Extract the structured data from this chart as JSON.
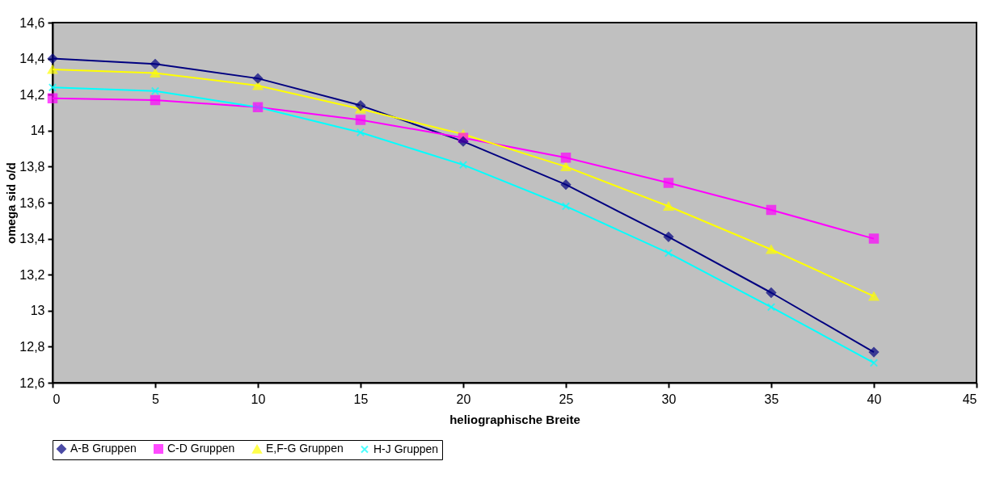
{
  "chart_data": {
    "type": "line",
    "xlabel": "heliographische Breite",
    "ylabel": "omega sid o/d",
    "x": [
      0,
      5,
      10,
      15,
      20,
      25,
      30,
      35,
      40
    ],
    "series": [
      {
        "name": "A-B Gruppen",
        "color": "#000080",
        "marker": "diamond",
        "values": [
          14.4,
          14.37,
          14.29,
          14.14,
          13.94,
          13.7,
          13.41,
          13.1,
          12.77
        ]
      },
      {
        "name": "C-D Gruppen",
        "color": "#ff00ff",
        "marker": "square",
        "values": [
          14.18,
          14.17,
          14.13,
          14.06,
          13.96,
          13.85,
          13.71,
          13.56,
          13.4
        ]
      },
      {
        "name": "E,F-G Gruppen",
        "color": "#ffff00",
        "marker": "triangle",
        "values": [
          14.34,
          14.32,
          14.25,
          14.12,
          13.98,
          13.8,
          13.58,
          13.34,
          13.08
        ]
      },
      {
        "name": "H-J Gruppen",
        "color": "#00ffff",
        "marker": "cross",
        "values": [
          14.24,
          14.22,
          14.13,
          13.99,
          13.81,
          13.58,
          13.32,
          13.02,
          12.71
        ]
      }
    ],
    "xlim": [
      0,
      45
    ],
    "xticks": [
      0,
      5,
      10,
      15,
      20,
      25,
      30,
      35,
      40,
      45
    ],
    "ylim": [
      12.6,
      14.6
    ],
    "yticks": [
      {
        "value": 12.6,
        "label": "12,6"
      },
      {
        "value": 12.8,
        "label": "12,8"
      },
      13,
      {
        "value": 13.2,
        "label": "13,2"
      },
      {
        "value": 13.4,
        "label": "13,4"
      },
      {
        "value": 13.6,
        "label": "13,6"
      },
      {
        "value": 13.8,
        "label": "13,8"
      },
      14,
      {
        "value": 14.2,
        "label": "14,2"
      },
      {
        "value": 14.4,
        "label": "14,4"
      },
      {
        "value": 14.6,
        "label": "14,6"
      }
    ],
    "grid": false,
    "legend": "bottom",
    "line_style": "solid"
  }
}
